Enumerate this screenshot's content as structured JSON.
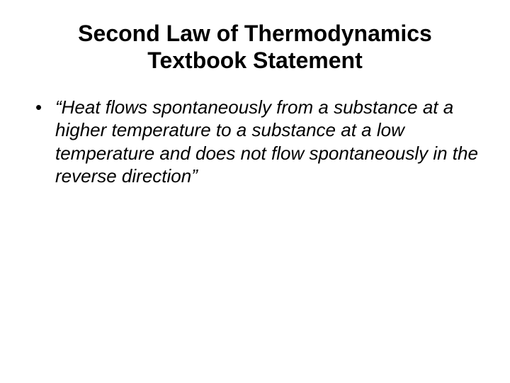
{
  "slide": {
    "title_line1": "Second Law of Thermodynamics",
    "title_line2": "Textbook Statement",
    "bullets": [
      {
        "text": "“Heat flows spontaneously from a substance at a higher temperature to a substance at a low temperature and does not flow spontaneously in the reverse direction”"
      }
    ],
    "colors": {
      "background": "#ffffff",
      "text": "#000000"
    },
    "typography": {
      "title_fontsize": 32,
      "title_weight": "bold",
      "body_fontsize": 26,
      "body_style": "italic",
      "font_family": "Arial"
    }
  }
}
